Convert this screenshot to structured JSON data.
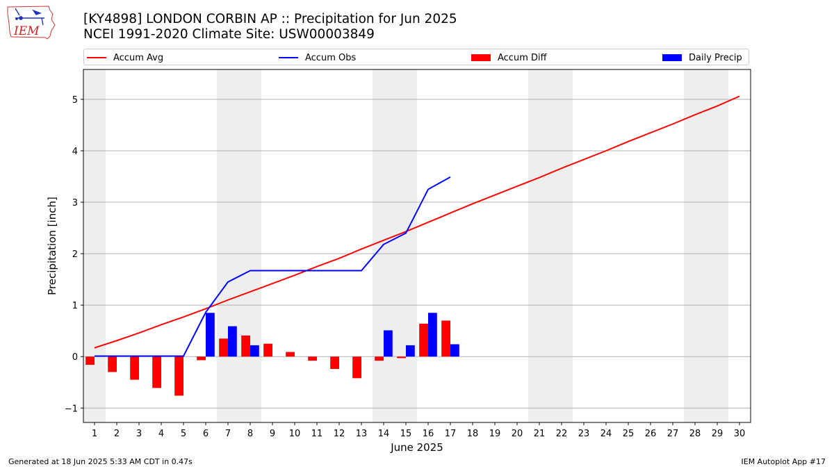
{
  "header": {
    "title_line1": "[KY4898] LONDON CORBIN AP :: Precipitation for Jun 2025",
    "title_line2": "NCEI 1991-2020 Climate Site: USW00003849"
  },
  "logo": {
    "text": "IEM",
    "icon": "iem-iowa-weather-logo-icon"
  },
  "footer": {
    "left": "Generated at 18 Jun 2025 5:33 AM CDT in 0.47s",
    "right": "IEM Autoplot App #17"
  },
  "colors": {
    "avg": "#ff0000",
    "obs": "#0000ff",
    "diff": "#ff0000",
    "daily": "#0000ff",
    "weekend": "#eeeeee",
    "grid": "#b0b0b0"
  },
  "chart_data": {
    "type": "bar",
    "xlabel": "June 2025",
    "ylabel": "Precipitation [inch]",
    "xlim": [
      0.5,
      30.5
    ],
    "ylim": [
      -1.28,
      5.58
    ],
    "yticks": [
      -1,
      0,
      1,
      2,
      3,
      4,
      5
    ],
    "xticks": [
      1,
      2,
      3,
      4,
      5,
      6,
      7,
      8,
      9,
      10,
      11,
      12,
      13,
      14,
      15,
      16,
      17,
      18,
      19,
      20,
      21,
      22,
      23,
      24,
      25,
      26,
      27,
      28,
      29,
      30
    ],
    "grid": "horizontal",
    "legend": {
      "placement": "top",
      "entries": [
        "Accum Avg",
        "Accum Obs",
        "Accum Diff",
        "Daily Precip"
      ]
    },
    "weekend_days": [
      1,
      7,
      8,
      14,
      15,
      21,
      22,
      28,
      29
    ],
    "days": [
      1,
      2,
      3,
      4,
      5,
      6,
      7,
      8,
      9,
      10,
      11,
      12,
      13,
      14,
      15,
      16,
      17,
      18,
      19,
      20,
      21,
      22,
      23,
      24,
      25,
      26,
      27,
      28,
      29,
      30
    ],
    "series": [
      {
        "name": "Accum Avg",
        "kind": "line",
        "values": [
          0.17,
          0.31,
          0.46,
          0.62,
          0.77,
          0.93,
          1.1,
          1.26,
          1.42,
          1.58,
          1.75,
          1.91,
          2.09,
          2.26,
          2.43,
          2.61,
          2.79,
          2.97,
          3.14,
          3.31,
          3.48,
          3.66,
          3.83,
          4.0,
          4.18,
          4.35,
          4.52,
          4.7,
          4.87,
          5.06
        ]
      },
      {
        "name": "Accum Obs",
        "kind": "line",
        "values": [
          0.01,
          0.01,
          0.01,
          0.01,
          0.01,
          0.86,
          1.45,
          1.67,
          1.67,
          1.67,
          1.67,
          1.67,
          1.67,
          2.18,
          2.4,
          3.25,
          3.49
        ]
      },
      {
        "name": "Accum Diff",
        "kind": "bar",
        "values": [
          -0.16,
          -0.3,
          -0.45,
          -0.61,
          -0.76,
          -0.07,
          0.35,
          0.41,
          0.25,
          0.09,
          -0.08,
          -0.24,
          -0.42,
          -0.08,
          -0.03,
          0.64,
          0.7
        ]
      },
      {
        "name": "Daily Precip",
        "kind": "bar",
        "values": [
          0,
          0,
          0,
          0,
          0,
          0.85,
          0.59,
          0.22,
          0,
          0,
          0,
          0,
          0,
          0.51,
          0.22,
          0.85,
          0.24
        ]
      }
    ]
  }
}
